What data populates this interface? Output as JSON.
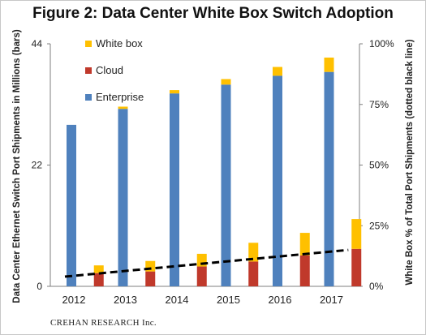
{
  "title": "Figure 2: Data Center White Box Switch Adoption",
  "footer": "CREHAN RESEARCH Inc.",
  "chart_data": {
    "type": "bar",
    "stacked": true,
    "categories": [
      "2012",
      "2013",
      "2014",
      "2015",
      "2016",
      "2017"
    ],
    "series": [
      {
        "name": "Enterprise",
        "color": "#4F81BD",
        "values": [
          29.3,
          32.2,
          35.0,
          36.6,
          38.2,
          38.9
        ]
      },
      {
        "name": "White box",
        "color": "#FFC000",
        "values": [
          0,
          0.4,
          0.6,
          1.0,
          1.6,
          2.6
        ]
      }
    ],
    "cloud_bars": {
      "name": "Cloud",
      "color": "#C0392B",
      "categories": [
        "2012",
        "2013",
        "2014",
        "2015",
        "2016",
        "2017"
      ],
      "cloud_values": [
        2.4,
        2.7,
        3.6,
        4.5,
        5.6,
        6.8
      ],
      "white_box_values": [
        1.4,
        1.9,
        2.3,
        3.4,
        4.1,
        5.4
      ]
    },
    "white_box_share_line": {
      "style": "dashed",
      "color": "#000000",
      "x": [
        "2012",
        "2017"
      ],
      "y_percent": [
        4,
        15
      ]
    },
    "ylabel_left": "Data Center Ethernet Switch Port Shipments in Millions (bars)",
    "ylabel_right": "White Box % of Total Port Shipments (dotted black line)",
    "ylim_left": [
      0,
      44
    ],
    "yticks_left": [
      "0",
      "22",
      "44"
    ],
    "ylim_right": [
      0,
      100
    ],
    "yticks_right": [
      "0%",
      "25%",
      "50%",
      "75%",
      "100%"
    ],
    "legend": [
      "White box",
      "Cloud",
      "Enterprise"
    ],
    "legend_position": "top-left",
    "grid": false
  }
}
